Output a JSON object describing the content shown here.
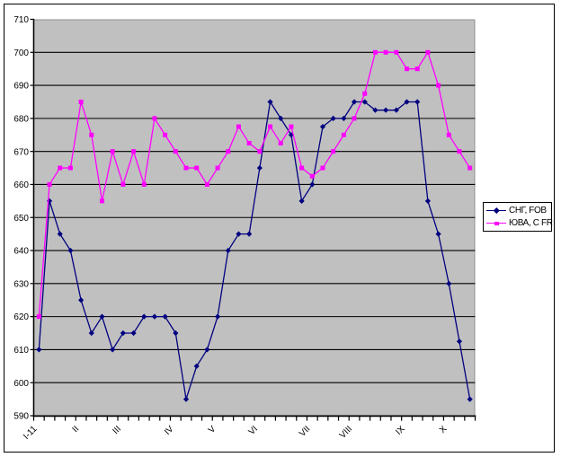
{
  "chart_data": {
    "type": "line",
    "title": "",
    "xlabel": "",
    "ylabel": "",
    "plot_background": "#c0c0c0",
    "gridline_color": "#000000",
    "axis_color": "#000000",
    "outer_border_color": "#000000",
    "background": "#ffffff",
    "grid": "on",
    "legend_position": "right",
    "y_axis": {
      "min": 590,
      "max": 710,
      "step": 10,
      "tick_labels": [
        "590",
        "600",
        "610",
        "620",
        "630",
        "640",
        "650",
        "660",
        "670",
        "680",
        "690",
        "700",
        "710"
      ]
    },
    "x_axis": {
      "point_count": 42,
      "labels": [
        {
          "label": "I-11",
          "point": 1
        },
        {
          "label": "II",
          "point": 5
        },
        {
          "label": "III",
          "point": 9
        },
        {
          "label": "IV",
          "point": 14
        },
        {
          "label": "V",
          "point": 18
        },
        {
          "label": "VI",
          "point": 22
        },
        {
          "label": "VII",
          "point": 27
        },
        {
          "label": "VIII",
          "point": 31
        },
        {
          "label": "IX",
          "point": 36
        },
        {
          "label": "X",
          "point": 40
        }
      ]
    },
    "series": [
      {
        "id": "sng",
        "name": "СНГ, FOB",
        "color": "#000080",
        "marker": "diamond",
        "values": [
          610,
          655,
          645,
          640,
          625,
          615,
          620,
          610,
          615,
          615,
          620,
          620,
          620,
          615,
          595,
          605,
          610,
          620,
          640,
          645,
          645,
          665,
          685,
          680,
          675,
          655,
          660,
          677.5,
          680,
          680,
          685,
          685,
          682.5,
          682.5,
          682.5,
          685,
          685,
          655,
          645,
          630,
          612.5,
          595
        ]
      },
      {
        "id": "yuva",
        "name": "ЮВА, C FR",
        "color": "#ff00ff",
        "marker": "square",
        "values": [
          620,
          660,
          665,
          665,
          685,
          675,
          655,
          670,
          660,
          670,
          660,
          680,
          675,
          670,
          665,
          665,
          660,
          665,
          670,
          677.5,
          672.5,
          670,
          677.5,
          672.5,
          677.5,
          665,
          662.5,
          665,
          670,
          675,
          680,
          687.5,
          700,
          700,
          700,
          695,
          695,
          700,
          690,
          675,
          670,
          665
        ]
      }
    ]
  }
}
